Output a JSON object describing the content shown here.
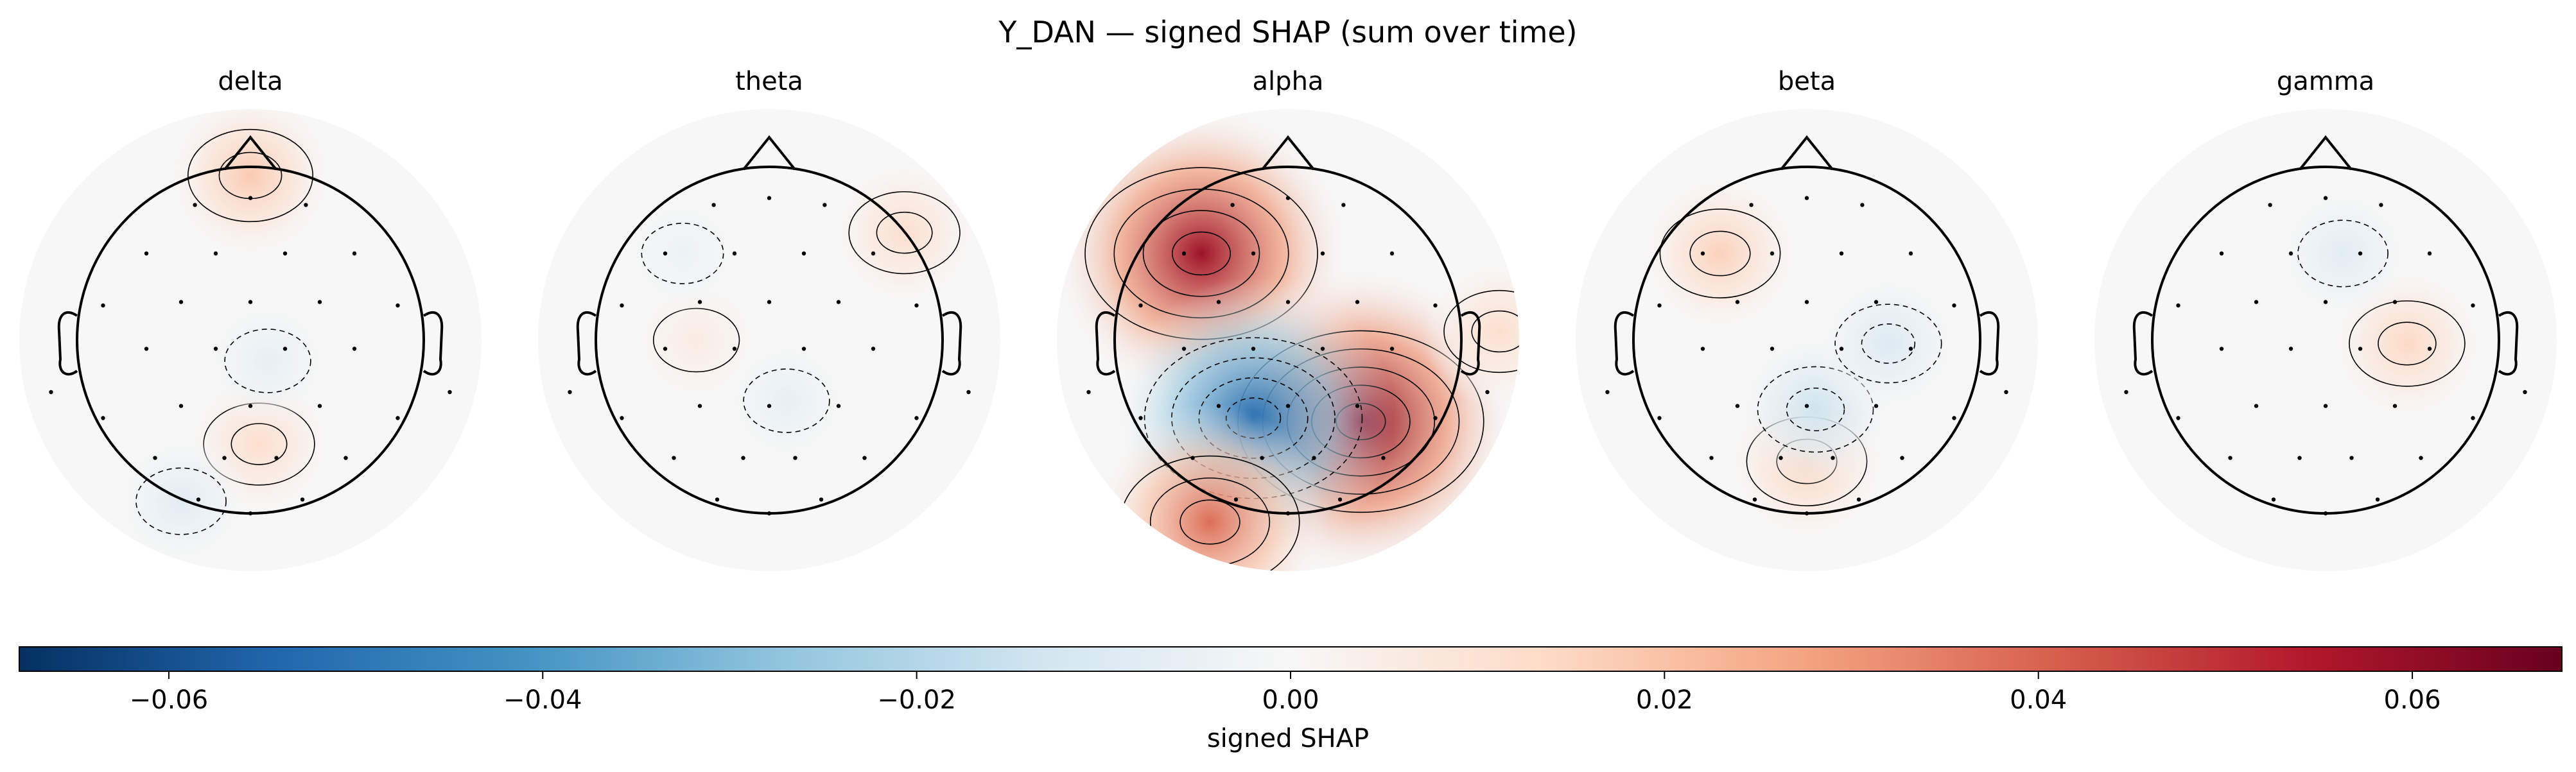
{
  "chart_data": {
    "type": "heatmap",
    "subtype": "eeg-topomap",
    "title": "Y_DAN — signed SHAP (sum over time)",
    "colormap": "RdBu_r (diverging, blue = negative, red = positive)",
    "value_range": [
      -0.068,
      0.068
    ],
    "panels": [
      {
        "band": "delta",
        "hotspots": [
          {
            "where": "frontal rim",
            "value": 0.018
          },
          {
            "where": "parieto-occipital, right of midline",
            "value": 0.012
          },
          {
            "where": "left occipital",
            "value": -0.008
          },
          {
            "where": "right centro-parietal",
            "value": -0.006
          }
        ]
      },
      {
        "band": "theta",
        "hotspots": [
          {
            "where": "right frontal",
            "value": 0.012
          },
          {
            "where": "left central",
            "value": 0.006
          },
          {
            "where": "centro-parietal",
            "value": -0.006
          },
          {
            "where": "left frontal",
            "value": -0.004
          }
        ]
      },
      {
        "band": "alpha",
        "hotspots": [
          {
            "where": "left frontal",
            "value": 0.058
          },
          {
            "where": "right parietal",
            "value": 0.062
          },
          {
            "where": "left parietal",
            "value": -0.052
          },
          {
            "where": "left occipital rim",
            "value": 0.038
          },
          {
            "where": "right temporal rim",
            "value": 0.012
          }
        ]
      },
      {
        "band": "beta",
        "hotspots": [
          {
            "where": "left frontal",
            "value": 0.016
          },
          {
            "where": "occipital midline",
            "value": 0.016
          },
          {
            "where": "parietal band",
            "value": -0.014
          },
          {
            "where": "right central",
            "value": -0.01
          }
        ]
      },
      {
        "band": "gamma",
        "hotspots": [
          {
            "where": "right central",
            "value": 0.014
          },
          {
            "where": "frontal",
            "value": -0.008
          }
        ]
      }
    ],
    "colorbar": {
      "label": "signed SHAP",
      "ticks": [
        -0.06,
        -0.04,
        -0.02,
        0.0,
        0.02,
        0.04,
        0.06
      ],
      "tick_labels": [
        "−0.06",
        "−0.04",
        "−0.02",
        "0.00",
        "0.02",
        "0.04",
        "0.06"
      ],
      "range": [
        -0.068,
        0.068
      ],
      "orientation": "horizontal"
    }
  }
}
